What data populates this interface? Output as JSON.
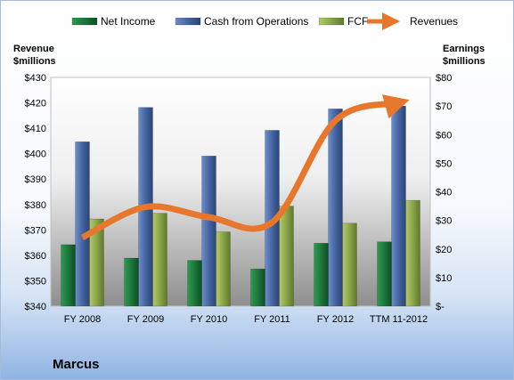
{
  "chart_data": {
    "type": "bar",
    "categories": [
      "FY 2008",
      "FY 2009",
      "FY 2010",
      "FY 2011",
      "FY 2012",
      "TTM 11-2012"
    ],
    "series": [
      {
        "name": "Net Income",
        "axis": "right",
        "color": "#1f7a3d",
        "values": [
          21.5,
          16.8,
          16.0,
          13.0,
          22.0,
          22.5
        ]
      },
      {
        "name": "Cash from Operations",
        "axis": "right",
        "color": "#3f5f9a",
        "values": [
          57.5,
          69.5,
          52.5,
          61.5,
          69.0,
          70.0
        ]
      },
      {
        "name": "FCF",
        "axis": "right",
        "color": "#8aa646",
        "values": [
          30.5,
          32.5,
          26.0,
          35.0,
          29.0,
          37.0
        ]
      },
      {
        "name": "Revenues",
        "axis": "left",
        "type": "line",
        "color": "#e8772e",
        "values": [
          367,
          379,
          375,
          373,
          413,
          420
        ]
      }
    ],
    "left_axis": {
      "label_line1": "Revenue",
      "label_line2": "$millions",
      "min": 340,
      "max": 430,
      "step": 10,
      "tick_labels": [
        "$340",
        "$350",
        "$360",
        "$370",
        "$380",
        "$390",
        "$400",
        "$410",
        "$420",
        "$430"
      ]
    },
    "right_axis": {
      "label_line1": "Earnings",
      "label_line2": "$millions",
      "min": 0,
      "max": 80,
      "step": 10,
      "tick_labels": [
        "$-",
        "$10",
        "$20",
        "$30",
        "$40",
        "$50",
        "$60",
        "$70",
        "$80"
      ]
    },
    "legend_position": "top",
    "grid": false,
    "footer_title": "Marcus"
  }
}
